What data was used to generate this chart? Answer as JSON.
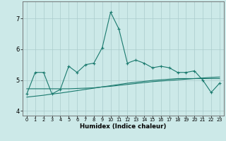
{
  "title": "",
  "xlabel": "Humidex (Indice chaleur)",
  "background_color": "#cce9e8",
  "grid_color": "#aacccc",
  "line_color": "#1a7a6e",
  "xlim": [
    -0.5,
    23.5
  ],
  "ylim": [
    3.85,
    7.55
  ],
  "xticks": [
    0,
    1,
    2,
    3,
    4,
    5,
    6,
    7,
    8,
    9,
    10,
    11,
    12,
    13,
    14,
    15,
    16,
    17,
    18,
    19,
    20,
    21,
    22,
    23
  ],
  "yticks": [
    4,
    5,
    6,
    7
  ],
  "line1_x": [
    0,
    1,
    2,
    3,
    4,
    5,
    6,
    7,
    8,
    9,
    10,
    11,
    12,
    13,
    14,
    15,
    16,
    17,
    18,
    19,
    20,
    21,
    22,
    23
  ],
  "line1_y": [
    4.55,
    5.25,
    5.25,
    4.55,
    4.7,
    5.45,
    5.25,
    5.5,
    5.55,
    6.05,
    7.2,
    6.65,
    5.55,
    5.65,
    5.55,
    5.4,
    5.45,
    5.4,
    5.25,
    5.25,
    5.3,
    5.0,
    4.6,
    4.9
  ],
  "line2_x": [
    0,
    1,
    2,
    3,
    4,
    5,
    6,
    7,
    8,
    9,
    10,
    11,
    12,
    13,
    14,
    15,
    16,
    17,
    18,
    19,
    20,
    21,
    22,
    23
  ],
  "line2_y": [
    4.72,
    4.72,
    4.72,
    4.72,
    4.72,
    4.72,
    4.73,
    4.74,
    4.75,
    4.78,
    4.8,
    4.83,
    4.86,
    4.89,
    4.92,
    4.95,
    4.97,
    4.99,
    5.01,
    5.03,
    5.05,
    5.07,
    5.09,
    5.1
  ],
  "line3_x": [
    0,
    1,
    2,
    3,
    4,
    5,
    6,
    7,
    8,
    9,
    10,
    11,
    12,
    13,
    14,
    15,
    16,
    17,
    18,
    19,
    20,
    21,
    22,
    23
  ],
  "line3_y": [
    4.45,
    4.48,
    4.51,
    4.55,
    4.58,
    4.62,
    4.66,
    4.7,
    4.74,
    4.78,
    4.82,
    4.86,
    4.9,
    4.93,
    4.96,
    4.99,
    5.01,
    5.03,
    5.05,
    5.05,
    5.05,
    5.05,
    5.05,
    5.05
  ]
}
